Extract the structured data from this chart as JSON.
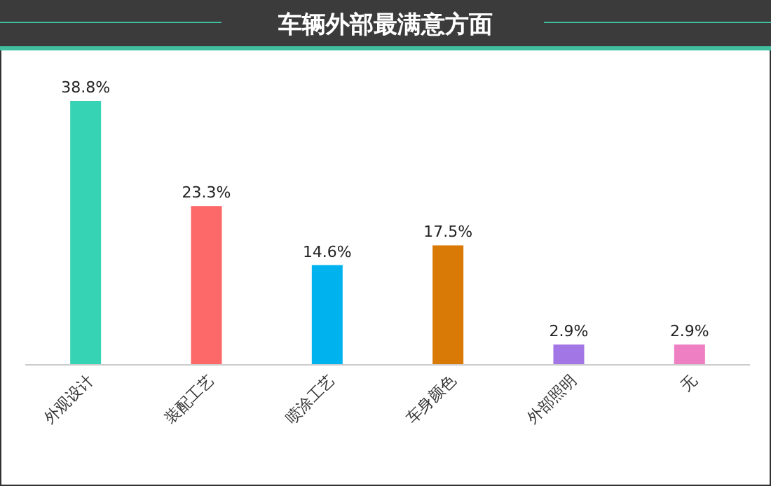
{
  "chart_data": {
    "type": "bar",
    "title": "车辆外部最满意方面",
    "categories": [
      "外观设计",
      "装配工艺",
      "喷涂工艺",
      "车身颜色",
      "外部照明",
      "无"
    ],
    "values": [
      38.8,
      23.3,
      14.6,
      17.5,
      2.9,
      2.9
    ],
    "colors": [
      "#36d3b4",
      "#fd6868",
      "#00b2ee",
      "#d97a06",
      "#a276e4",
      "#ee7fc2"
    ],
    "data_labels": true,
    "value_labels": [
      "38.8%",
      "23.3%",
      "14.6%",
      "17.5%",
      "2.9%",
      "2.9%"
    ]
  }
}
